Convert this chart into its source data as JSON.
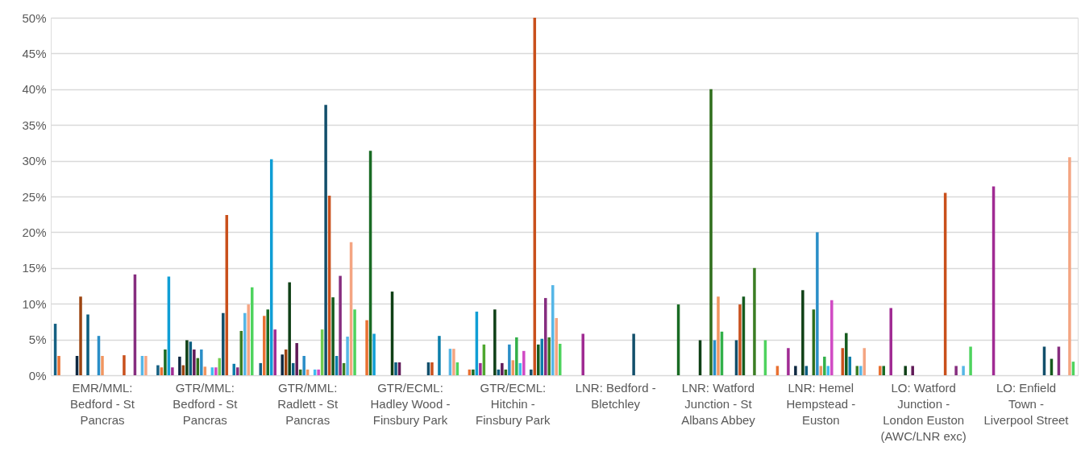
{
  "chart_data": {
    "type": "bar",
    "categories": [
      "EMR/MML: Bedford - St Pancras",
      "GTR/MML: Bedford - St Pancras",
      "GTR/MML: Radlett - St Pancras",
      "GTR/ECML: Hadley Wood - Finsbury Park",
      "GTR/ECML: Hitchin - Finsbury Park",
      "LNR: Bedford - Bletchley",
      "LNR: Watford Junction - St Albans Abbey",
      "LNR: Hemel Hempstead - Euston",
      "LO: Watford Junction - London Euston (AWC/LNR exc)",
      "LO: Enfield Town - Liverpool Street"
    ],
    "ylim": [
      0,
      50
    ],
    "yticks": [
      {
        "value": 0,
        "label": "0%"
      },
      {
        "value": 5,
        "label": "5%"
      },
      {
        "value": 10,
        "label": "10%"
      },
      {
        "value": 15,
        "label": "15%"
      },
      {
        "value": 20,
        "label": "20%"
      },
      {
        "value": 25,
        "label": "25%"
      },
      {
        "value": 30,
        "label": "30%"
      },
      {
        "value": 35,
        "label": "35%"
      },
      {
        "value": 40,
        "label": "40%"
      },
      {
        "value": 45,
        "label": "45%"
      },
      {
        "value": 50,
        "label": "50%"
      }
    ],
    "grid": "y",
    "series": [
      {
        "color": "#156082",
        "values": [
          7.2,
          1.4,
          1.7,
          null,
          null,
          null,
          null,
          null,
          null,
          null
        ]
      },
      {
        "color": "#e97132",
        "values": [
          2.7,
          1.1,
          8.3,
          7.7,
          0.8,
          null,
          null,
          1.3,
          1.3,
          null
        ]
      },
      {
        "color": "#196b24",
        "values": [
          null,
          3.6,
          9.2,
          31.4,
          0.8,
          null,
          9.9,
          null,
          1.3,
          null
        ]
      },
      {
        "color": "#0f9ed5",
        "values": [
          null,
          13.8,
          30.2,
          5.8,
          8.9,
          null,
          null,
          null,
          null,
          null
        ]
      },
      {
        "color": "#a02b93",
        "values": [
          null,
          1.1,
          6.4,
          null,
          1.7,
          5.8,
          null,
          3.8,
          9.4,
          26.4
        ]
      },
      {
        "color": "#4ea72e",
        "values": [
          null,
          null,
          null,
          null,
          4.3,
          null,
          null,
          null,
          null,
          null
        ]
      },
      {
        "color": "#0e2841",
        "values": [
          2.7,
          2.6,
          2.9,
          null,
          null,
          null,
          null,
          1.3,
          null,
          null
        ]
      },
      {
        "color": "#9c4410",
        "values": [
          11.0,
          1.4,
          3.6,
          null,
          null,
          null,
          null,
          null,
          null,
          null
        ]
      },
      {
        "color": "#0f4016",
        "values": [
          null,
          4.9,
          13.0,
          11.7,
          9.2,
          null,
          4.9,
          11.9,
          1.3,
          null
        ]
      },
      {
        "color": "#0b5e80",
        "values": [
          8.5,
          4.7,
          1.7,
          1.8,
          0.8,
          null,
          null,
          1.3,
          null,
          null
        ]
      },
      {
        "color": "#601a58",
        "values": [
          null,
          3.6,
          4.5,
          1.8,
          1.7,
          null,
          null,
          null,
          1.3,
          null
        ]
      },
      {
        "color": "#2f6e1c",
        "values": [
          null,
          2.4,
          0.8,
          null,
          0.8,
          null,
          40.0,
          9.2,
          null,
          null
        ]
      },
      {
        "color": "#2a8ec7",
        "values": [
          5.5,
          3.6,
          2.7,
          null,
          4.3,
          null,
          4.9,
          20.0,
          null,
          null
        ]
      },
      {
        "color": "#f09660",
        "values": [
          2.7,
          1.2,
          0.8,
          null,
          2.1,
          null,
          11.0,
          1.3,
          null,
          null
        ]
      },
      {
        "color": "#32b04a",
        "values": [
          null,
          null,
          null,
          null,
          5.3,
          null,
          6.1,
          2.6,
          null,
          null
        ]
      },
      {
        "color": "#3fbcef",
        "values": [
          null,
          1.1,
          0.8,
          null,
          1.7,
          null,
          null,
          1.3,
          null,
          null
        ]
      },
      {
        "color": "#d04ac4",
        "values": [
          null,
          1.1,
          0.8,
          null,
          3.4,
          null,
          null,
          10.5,
          null,
          null
        ]
      },
      {
        "color": "#72cc50",
        "values": [
          null,
          2.4,
          6.4,
          null,
          null,
          null,
          null,
          null,
          null,
          null
        ]
      },
      {
        "color": "#124f6b",
        "values": [
          null,
          8.7,
          37.8,
          1.8,
          0.8,
          5.8,
          4.9,
          null,
          null,
          4.0
        ]
      },
      {
        "color": "#c9501c",
        "values": [
          2.8,
          22.4,
          25.1,
          1.8,
          50.0,
          null,
          9.9,
          3.8,
          25.5,
          null
        ]
      },
      {
        "color": "#145a1d",
        "values": [
          null,
          null,
          10.9,
          null,
          4.3,
          null,
          11.0,
          5.9,
          null,
          2.3
        ]
      },
      {
        "color": "#0c7eaa",
        "values": [
          null,
          1.6,
          2.7,
          5.5,
          5.1,
          null,
          null,
          2.6,
          null,
          null
        ]
      },
      {
        "color": "#862d7f",
        "values": [
          14.1,
          1.1,
          13.9,
          null,
          10.8,
          null,
          null,
          null,
          1.3,
          4.0
        ]
      },
      {
        "color": "#3b7d23",
        "values": [
          null,
          6.2,
          1.7,
          null,
          5.3,
          null,
          15.0,
          1.3,
          null,
          null
        ]
      },
      {
        "color": "#56b6e6",
        "values": [
          2.7,
          8.7,
          5.4,
          3.7,
          12.6,
          null,
          null,
          1.3,
          1.3,
          null
        ]
      },
      {
        "color": "#f4a582",
        "values": [
          2.7,
          9.9,
          18.6,
          3.7,
          8.0,
          null,
          null,
          3.8,
          null,
          30.5
        ]
      },
      {
        "color": "#4ed35e",
        "values": [
          null,
          12.3,
          9.2,
          1.8,
          4.4,
          null,
          4.9,
          null,
          4.0,
          1.9
        ]
      }
    ]
  }
}
